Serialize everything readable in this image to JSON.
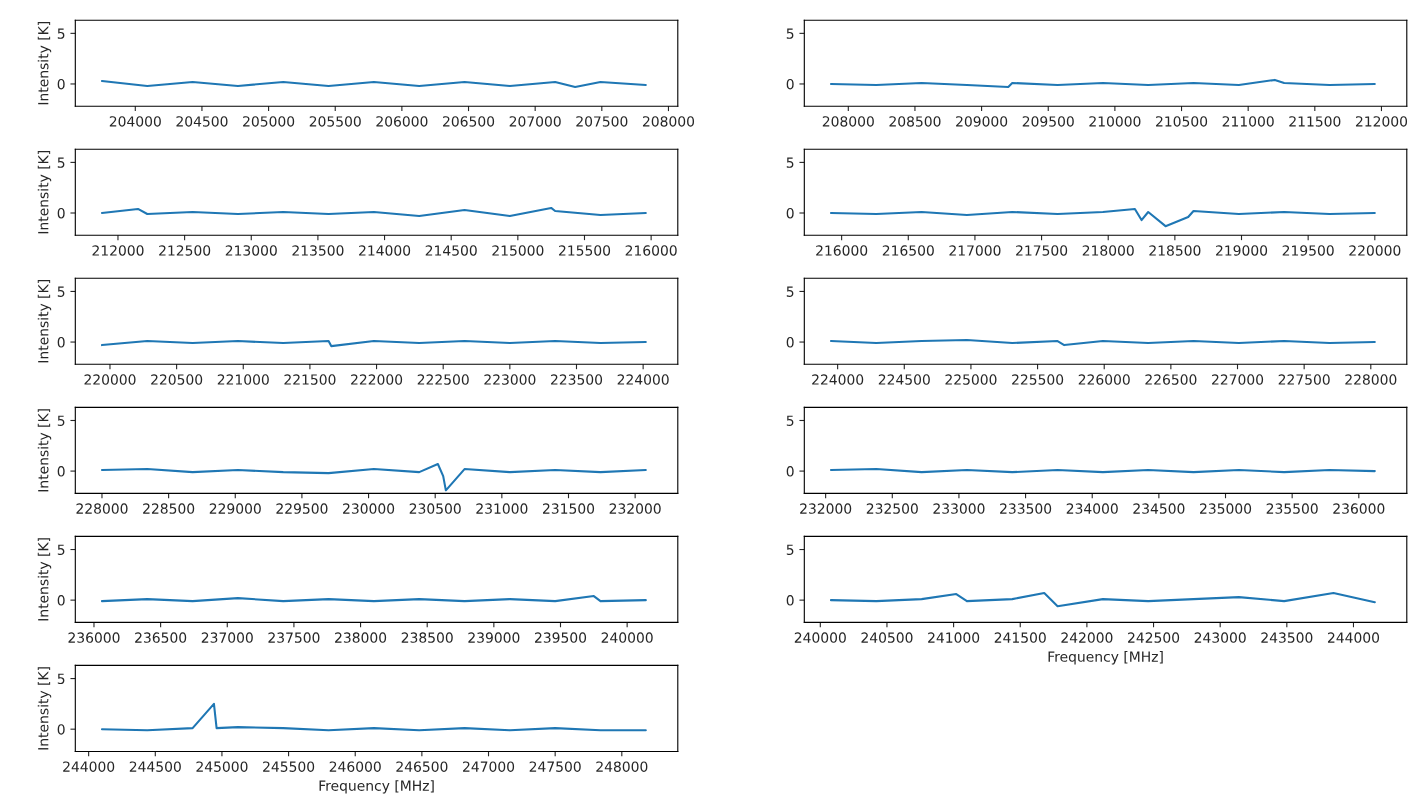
{
  "chart_data": [
    {
      "type": "line",
      "ylabel": "Intensity [K]",
      "x": [
        203750,
        204090,
        204430,
        204770,
        205110,
        205450,
        205790,
        206130,
        206470,
        206810,
        207150,
        207300,
        207490,
        207830
      ],
      "series": [
        {
          "color": "#1f77b4",
          "values": [
            0.3,
            -0.2,
            0.2,
            -0.2,
            0.2,
            -0.2,
            0.2,
            -0.2,
            0.2,
            -0.2,
            0.2,
            -0.3,
            0.2,
            -0.1
          ]
        }
      ],
      "xlim": [
        203550,
        208070
      ],
      "xticks": [
        204000,
        204500,
        205000,
        205500,
        206000,
        206500,
        207000,
        207500,
        208000
      ],
      "ylim": [
        -2.2,
        6.3
      ],
      "yticks": [
        0,
        5
      ]
    },
    {
      "type": "line",
      "x": [
        207870,
        208210,
        208550,
        208890,
        209200,
        209230,
        209570,
        209910,
        210250,
        210590,
        210930,
        211200,
        211270,
        211610,
        211950
      ],
      "series": [
        {
          "color": "#1f77b4",
          "values": [
            0.0,
            -0.1,
            0.1,
            -0.1,
            -0.3,
            0.1,
            -0.1,
            0.1,
            -0.1,
            0.1,
            -0.1,
            0.4,
            0.1,
            -0.1,
            0.0
          ]
        }
      ],
      "xlim": [
        207670,
        212190
      ],
      "xticks": [
        208000,
        208500,
        209000,
        209500,
        210000,
        210500,
        211000,
        211500,
        212000
      ],
      "ylim": [
        -2.2,
        6.3
      ],
      "yticks": [
        0,
        5
      ]
    },
    {
      "type": "line",
      "ylabel": "Intensity [K]",
      "x": [
        211880,
        212150,
        212220,
        212560,
        212900,
        213240,
        213580,
        213920,
        214260,
        214600,
        214940,
        215250,
        215280,
        215620,
        215960
      ],
      "series": [
        {
          "color": "#1f77b4",
          "values": [
            0.0,
            0.4,
            -0.1,
            0.1,
            -0.1,
            0.1,
            -0.1,
            0.1,
            -0.3,
            0.3,
            -0.3,
            0.5,
            0.2,
            -0.2,
            0.0
          ]
        }
      ],
      "xlim": [
        211680,
        216200
      ],
      "xticks": [
        212000,
        212500,
        213000,
        213500,
        214000,
        214500,
        215000,
        215500,
        216000
      ],
      "ylim": [
        -2.2,
        6.3
      ],
      "yticks": [
        0,
        5
      ]
    },
    {
      "type": "line",
      "x": [
        215920,
        216260,
        216600,
        216940,
        217280,
        217620,
        217960,
        218200,
        218250,
        218300,
        218430,
        218600,
        218640,
        218980,
        219320,
        219660,
        220000
      ],
      "series": [
        {
          "color": "#1f77b4",
          "values": [
            0.0,
            -0.1,
            0.1,
            -0.2,
            0.1,
            -0.1,
            0.1,
            0.4,
            -0.7,
            0.1,
            -1.3,
            -0.4,
            0.2,
            -0.1,
            0.1,
            -0.1,
            0.0
          ]
        }
      ],
      "xlim": [
        215720,
        220240
      ],
      "xticks": [
        216000,
        216500,
        217000,
        217500,
        218000,
        218500,
        219000,
        219500,
        220000
      ],
      "ylim": [
        -2.2,
        6.3
      ],
      "yticks": [
        0,
        5
      ]
    },
    {
      "type": "line",
      "ylabel": "Intensity [K]",
      "x": [
        219940,
        220280,
        220620,
        220960,
        221300,
        221640,
        221660,
        221980,
        222320,
        222660,
        223000,
        223340,
        223680,
        224020
      ],
      "series": [
        {
          "color": "#1f77b4",
          "values": [
            -0.3,
            0.1,
            -0.1,
            0.1,
            -0.1,
            0.1,
            -0.4,
            0.1,
            -0.1,
            0.1,
            -0.1,
            0.1,
            -0.1,
            0.0
          ]
        }
      ],
      "xlim": [
        219740,
        224260
      ],
      "xticks": [
        220000,
        220500,
        221000,
        221500,
        222000,
        222500,
        223000,
        223500,
        224000
      ],
      "ylim": [
        -2.2,
        6.3
      ],
      "yticks": [
        0,
        5
      ]
    },
    {
      "type": "line",
      "x": [
        223950,
        224290,
        224630,
        224970,
        225310,
        225650,
        225700,
        225990,
        226330,
        226670,
        227010,
        227350,
        227690,
        228030
      ],
      "series": [
        {
          "color": "#1f77b4",
          "values": [
            0.1,
            -0.1,
            0.1,
            0.2,
            -0.1,
            0.1,
            -0.3,
            0.1,
            -0.1,
            0.1,
            -0.1,
            0.1,
            -0.1,
            0.0
          ]
        }
      ],
      "xlim": [
        223750,
        228270
      ],
      "xticks": [
        224000,
        224500,
        225000,
        225500,
        226000,
        226500,
        227000,
        227500,
        228000
      ],
      "ylim": [
        -2.2,
        6.3
      ],
      "yticks": [
        0,
        5
      ]
    },
    {
      "type": "line",
      "ylabel": "Intensity [K]",
      "x": [
        228000,
        228340,
        228680,
        229020,
        229360,
        229700,
        230040,
        230380,
        230520,
        230560,
        230580,
        230720,
        231060,
        231400,
        231740,
        232080
      ],
      "series": [
        {
          "color": "#1f77b4",
          "values": [
            0.1,
            0.2,
            -0.1,
            0.1,
            -0.1,
            -0.2,
            0.2,
            -0.1,
            0.7,
            -0.5,
            -1.9,
            0.2,
            -0.1,
            0.1,
            -0.1,
            0.1
          ]
        }
      ],
      "xlim": [
        227800,
        232320
      ],
      "xticks": [
        228000,
        228500,
        229000,
        229500,
        230000,
        230500,
        231000,
        231500,
        232000
      ],
      "ylim": [
        -2.2,
        6.3
      ],
      "yticks": [
        0,
        5
      ]
    },
    {
      "type": "line",
      "x": [
        232040,
        232380,
        232720,
        233060,
        233400,
        233740,
        234080,
        234420,
        234760,
        235100,
        235440,
        235780,
        236120
      ],
      "series": [
        {
          "color": "#1f77b4",
          "values": [
            0.1,
            0.2,
            -0.1,
            0.1,
            -0.1,
            0.1,
            -0.1,
            0.1,
            -0.1,
            0.1,
            -0.1,
            0.1,
            0.0
          ]
        }
      ],
      "xlim": [
        231840,
        236360
      ],
      "xticks": [
        232000,
        232500,
        233000,
        233500,
        234000,
        234500,
        235000,
        235500,
        236000
      ],
      "ylim": [
        -2.2,
        6.3
      ],
      "yticks": [
        0,
        5
      ]
    },
    {
      "type": "line",
      "ylabel": "Intensity [K]",
      "x": [
        236060,
        236400,
        236740,
        237080,
        237420,
        237760,
        238100,
        238440,
        238780,
        239120,
        239460,
        239750,
        239800,
        240140
      ],
      "series": [
        {
          "color": "#1f77b4",
          "values": [
            -0.1,
            0.1,
            -0.1,
            0.2,
            -0.1,
            0.1,
            -0.1,
            0.1,
            -0.1,
            0.1,
            -0.1,
            0.4,
            -0.1,
            0.0
          ]
        }
      ],
      "xlim": [
        235860,
        240380
      ],
      "xticks": [
        236000,
        236500,
        237000,
        237500,
        238000,
        238500,
        239000,
        239500,
        240000
      ],
      "ylim": [
        -2.2,
        6.3
      ],
      "yticks": [
        0,
        5
      ]
    },
    {
      "type": "line",
      "xlabel": "Frequency [MHz]",
      "x": [
        240080,
        240420,
        240760,
        241020,
        241100,
        241440,
        241680,
        241780,
        242120,
        242460,
        242800,
        243140,
        243480,
        243850,
        244160
      ],
      "series": [
        {
          "color": "#1f77b4",
          "values": [
            0.0,
            -0.1,
            0.1,
            0.6,
            -0.1,
            0.1,
            0.7,
            -0.6,
            0.1,
            -0.1,
            0.1,
            0.3,
            -0.1,
            0.7,
            -0.2
          ]
        }
      ],
      "xlim": [
        239880,
        244400
      ],
      "xticks": [
        240000,
        240500,
        241000,
        241500,
        242000,
        242500,
        243000,
        243500,
        244000
      ],
      "ylim": [
        -2.2,
        6.3
      ],
      "yticks": [
        0,
        5
      ]
    },
    {
      "type": "line",
      "ylabel": "Intensity [K]",
      "xlabel": "Frequency [MHz]",
      "x": [
        244100,
        244440,
        244780,
        244940,
        244960,
        245120,
        245460,
        245800,
        246140,
        246480,
        246820,
        247160,
        247500,
        247840,
        248180
      ],
      "series": [
        {
          "color": "#1f77b4",
          "values": [
            0.0,
            -0.1,
            0.1,
            2.5,
            0.1,
            0.2,
            0.1,
            -0.1,
            0.1,
            -0.1,
            0.1,
            -0.1,
            0.1,
            -0.1,
            -0.1
          ]
        }
      ],
      "xlim": [
        243900,
        248420
      ],
      "xticks": [
        244000,
        244500,
        245000,
        245500,
        246000,
        246500,
        247000,
        247500,
        248000
      ],
      "ylim": [
        -2.2,
        6.3
      ],
      "yticks": [
        0,
        5
      ]
    }
  ]
}
